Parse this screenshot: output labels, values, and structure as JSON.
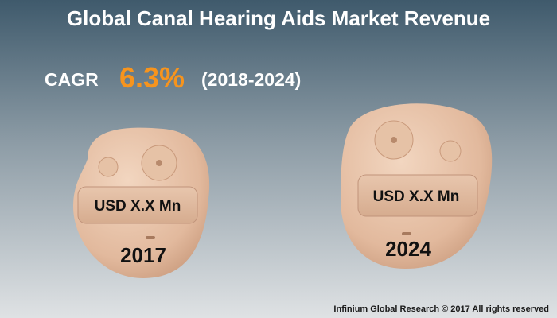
{
  "header": {
    "title": "Global Canal Hearing Aids Market Revenue"
  },
  "cagr": {
    "label": "CAGR",
    "value": "6.3%",
    "period": "(2018-2024)"
  },
  "items": [
    {
      "value_label": "USD X.X Mn",
      "year": "2017"
    },
    {
      "value_label": "USD X.X Mn",
      "year": "2024"
    }
  ],
  "footer": {
    "text": "Infinium Global Research © 2017 All rights reserved"
  }
}
